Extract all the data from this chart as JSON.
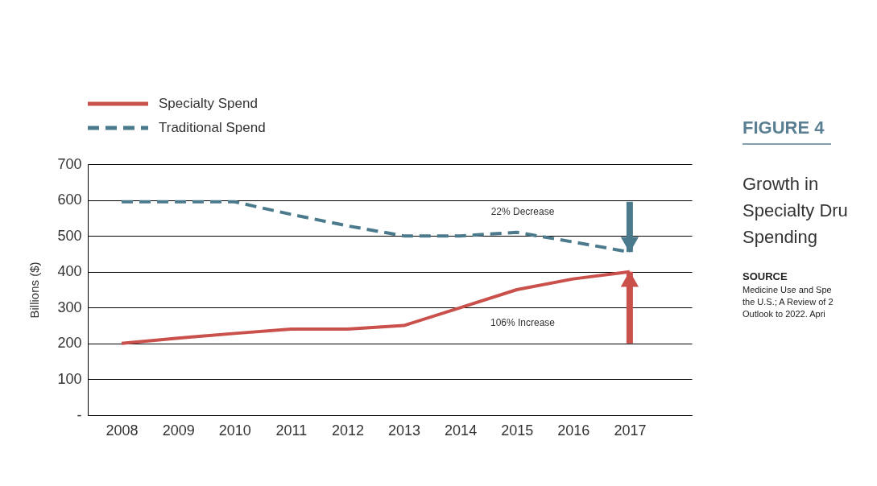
{
  "chart_data": {
    "type": "line",
    "subtitle": "FIGURE 4",
    "title": "Growth in Specialty Dru Spending",
    "ylabel": "Billions ($)",
    "x": [
      2008,
      2009,
      2010,
      2011,
      2012,
      2013,
      2014,
      2015,
      2016,
      2017
    ],
    "xlim": [
      2007.4,
      2018.1
    ],
    "xticks": [
      2008,
      2009,
      2010,
      2011,
      2012,
      2013,
      2014,
      2015,
      2016,
      2017
    ],
    "ylim": [
      0,
      700
    ],
    "yticks": [
      {
        "value": 0,
        "label": "-"
      },
      100,
      200,
      300,
      400,
      500,
      600,
      700
    ],
    "grid": "y",
    "legend": "top left",
    "series": [
      {
        "name": "Specialty Spend",
        "color": "#c9504b",
        "line_style": "solid",
        "values": [
          200,
          215,
          228,
          240,
          240,
          250,
          300,
          350,
          380,
          400
        ]
      },
      {
        "name": "Traditional Spend",
        "color": "#4a7a8c",
        "line_style": "dashed",
        "values": [
          595,
          595,
          595,
          560,
          528,
          500,
          500,
          510,
          483,
          455
        ]
      }
    ],
    "annotations": [
      "22% Decrease",
      "106% Increase",
      "SOURCE",
      "Medicine Use and Spe",
      "the U.S.; A Review of 2",
      "Outlook to 2022. Apri"
    ]
  }
}
